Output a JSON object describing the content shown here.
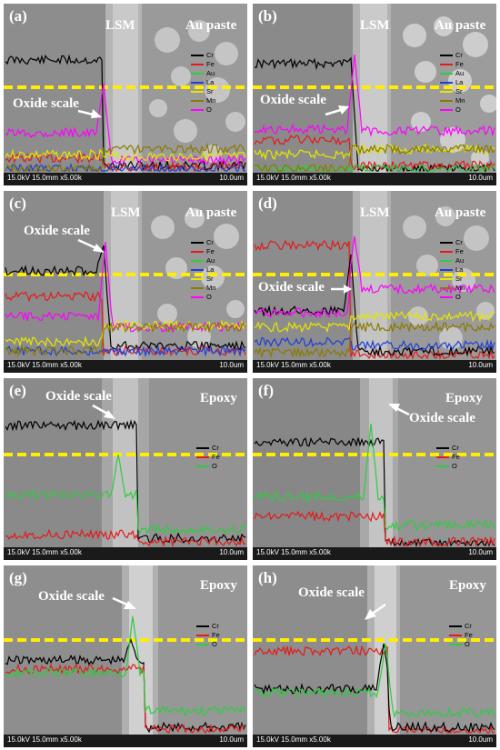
{
  "panels": [
    {
      "label": "(a)",
      "top_labels": [
        "LSM",
        "Au paste"
      ],
      "oxide_label": "Oxide scale",
      "legend": [
        {
          "name": "Cr",
          "color": "#000000"
        },
        {
          "name": "Fe",
          "color": "#e41a1c"
        },
        {
          "name": "Au",
          "color": "#2ecc40"
        },
        {
          "name": "La",
          "color": "#1f3fd6"
        },
        {
          "name": "Sr",
          "color": "#e6e600"
        },
        {
          "name": "Mn",
          "color": "#8a7a00"
        },
        {
          "name": "O",
          "color": "#ff00ff"
        }
      ],
      "scale_text": "15.0kV 15.0mm x5.00k",
      "scale_right": "10.0um"
    },
    {
      "label": "(b)",
      "top_labels": [
        "LSM",
        "Au paste"
      ],
      "oxide_label": "Oxide scale",
      "legend": [
        {
          "name": "Cr",
          "color": "#000000"
        },
        {
          "name": "Fe",
          "color": "#e41a1c"
        },
        {
          "name": "Au",
          "color": "#2ecc40"
        },
        {
          "name": "La",
          "color": "#1f3fd6"
        },
        {
          "name": "Sr",
          "color": "#e6e600"
        },
        {
          "name": "Mn",
          "color": "#8a7a00"
        },
        {
          "name": "O",
          "color": "#ff00ff"
        }
      ],
      "scale_text": "15.0kV 15.0mm x5.00k",
      "scale_right": "10.0um"
    },
    {
      "label": "(c)",
      "top_labels": [
        "LSM",
        "Au paste"
      ],
      "oxide_label": "Oxide scale",
      "legend": [
        {
          "name": "Cr",
          "color": "#000000"
        },
        {
          "name": "Fe",
          "color": "#e41a1c"
        },
        {
          "name": "Au",
          "color": "#2ecc40"
        },
        {
          "name": "La",
          "color": "#1f3fd6"
        },
        {
          "name": "Sr",
          "color": "#e6e600"
        },
        {
          "name": "Mn",
          "color": "#8a7a00"
        },
        {
          "name": "O",
          "color": "#ff00ff"
        }
      ],
      "scale_text": "15.0kV 15.0mm x5.00k",
      "scale_right": "10.0um"
    },
    {
      "label": "(d)",
      "top_labels": [
        "LSM",
        "Au paste"
      ],
      "oxide_label": "Oxide scale",
      "legend": [
        {
          "name": "Cr",
          "color": "#000000"
        },
        {
          "name": "Fe",
          "color": "#e41a1c"
        },
        {
          "name": "Au",
          "color": "#2ecc40"
        },
        {
          "name": "La",
          "color": "#1f3fd6"
        },
        {
          "name": "Sr",
          "color": "#e6e600"
        },
        {
          "name": "Mn",
          "color": "#8a7a00"
        },
        {
          "name": "O",
          "color": "#ff00ff"
        }
      ],
      "scale_text": "15.0kV 15.0mm x5.00k",
      "scale_right": "10.0um"
    },
    {
      "label": "(e)",
      "top_labels": [
        "Epoxy"
      ],
      "oxide_label": "Oxide scale",
      "legend": [
        {
          "name": "Cr",
          "color": "#000000"
        },
        {
          "name": "Fe",
          "color": "#e41a1c"
        },
        {
          "name": "O",
          "color": "#2ecc40"
        }
      ],
      "scale_text": "15.0kV 15.0mm x5.00k",
      "scale_right": "10.0um"
    },
    {
      "label": "(f)",
      "top_labels": [
        "Epoxy"
      ],
      "oxide_label": "Oxide scale",
      "legend": [
        {
          "name": "Cr",
          "color": "#000000"
        },
        {
          "name": "Fe",
          "color": "#e41a1c"
        },
        {
          "name": "O",
          "color": "#2ecc40"
        }
      ],
      "scale_text": "15.0kV 15.0mm x5.00k",
      "scale_right": "10.0um"
    },
    {
      "label": "(g)",
      "top_labels": [
        "Epoxy"
      ],
      "oxide_label": "Oxide scale",
      "legend": [
        {
          "name": "Cr",
          "color": "#000000"
        },
        {
          "name": "Fe",
          "color": "#e41a1c"
        },
        {
          "name": "O",
          "color": "#2ecc40"
        }
      ],
      "scale_text": "15.0kV 15.0mm x5.00k",
      "scale_right": "10.0um"
    },
    {
      "label": "(h)",
      "top_labels": [
        "Epoxy"
      ],
      "oxide_label": "Oxide scale",
      "legend": [
        {
          "name": "Cr",
          "color": "#000000"
        },
        {
          "name": "Fe",
          "color": "#e41a1c"
        },
        {
          "name": "O",
          "color": "#2ecc40"
        }
      ],
      "scale_text": "15.0kV 15.0mm x5.00k",
      "scale_right": "10.0um"
    }
  ],
  "dashed_line_color": "#ffee00"
}
